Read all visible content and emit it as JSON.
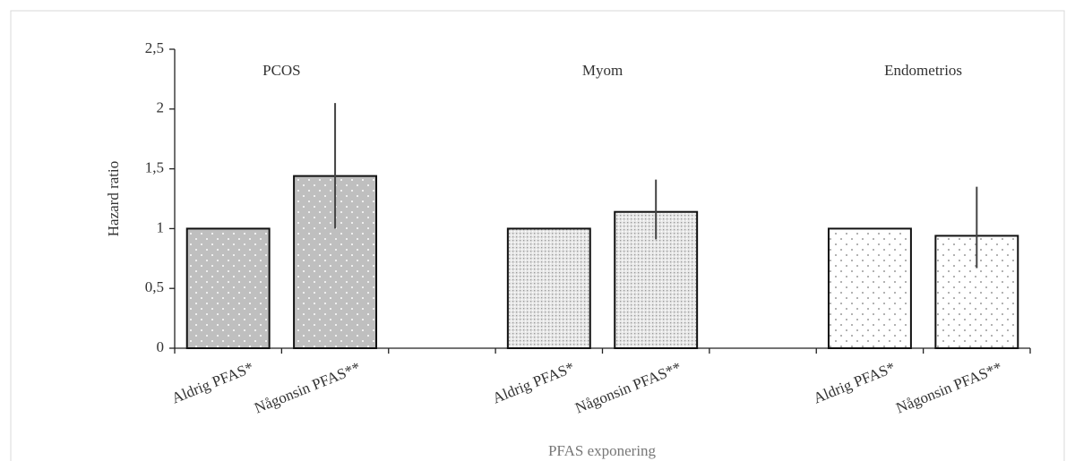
{
  "chart_data": {
    "type": "bar",
    "y_label": "Hazard ratio",
    "x_label": "PFAS exponering",
    "ylim": [
      0,
      2.5
    ],
    "yticks": [
      0,
      {
        "value": 0.5,
        "label": "0,5"
      },
      1,
      {
        "value": 1.5,
        "label": "1,5"
      },
      2,
      {
        "value": 2.5,
        "label": "2,5"
      }
    ],
    "groups": [
      {
        "name": "PCOS",
        "color": "#bfbfbf",
        "categories": [
          "Aldrig PFAS*",
          "Någonsin PFAS**"
        ],
        "values": [
          1,
          1.44
        ],
        "ci_low": [
          null,
          1.0
        ],
        "ci_high": [
          null,
          2.05
        ]
      },
      {
        "name": "Myom",
        "color": "#e6e6e6",
        "categories": [
          "Aldrig PFAS*",
          "Någonsin PFAS**"
        ],
        "values": [
          1,
          1.14
        ],
        "ci_low": [
          null,
          0.91
        ],
        "ci_high": [
          null,
          1.41
        ]
      },
      {
        "name": "Endometrios",
        "color": "#ffffff",
        "categories": [
          "Aldrig PFAS*",
          "Någonsin PFAS**"
        ],
        "values": [
          1,
          0.94
        ],
        "ci_low": [
          null,
          0.67
        ],
        "ci_high": [
          null,
          1.35
        ]
      }
    ]
  }
}
